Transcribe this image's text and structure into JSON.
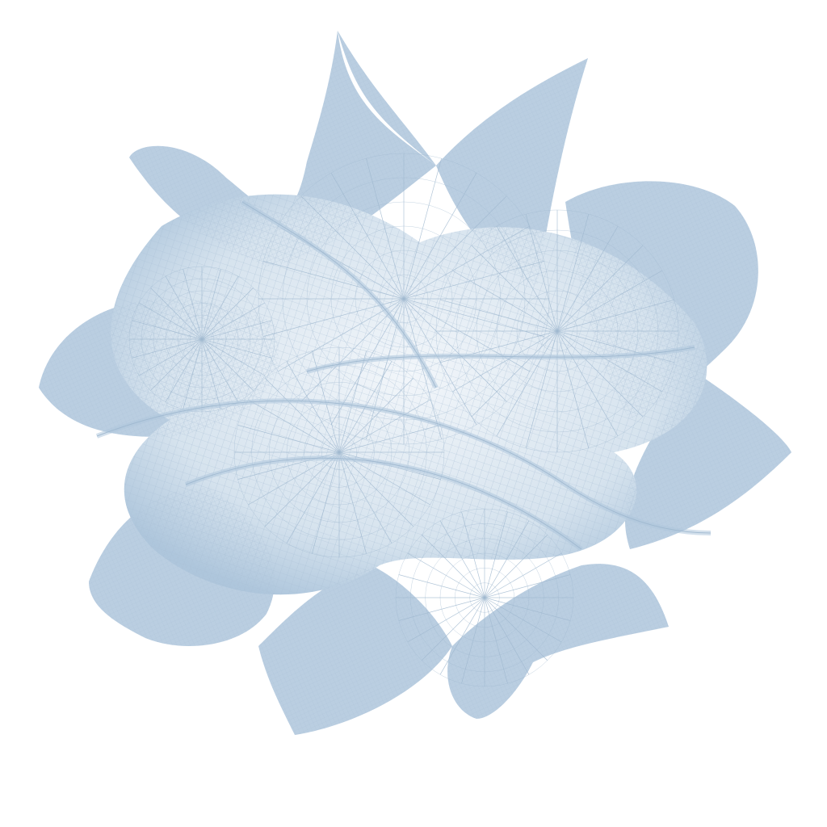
{
  "scene": {
    "subject": "calabi-yau-manifold-wireframe",
    "palette": {
      "background": "#ffffff",
      "surface_light": "#eef3f8",
      "surface_mid": "#c9d8e6",
      "surface_dark": "#aec6dc",
      "wire": "#9fb8cf"
    }
  }
}
